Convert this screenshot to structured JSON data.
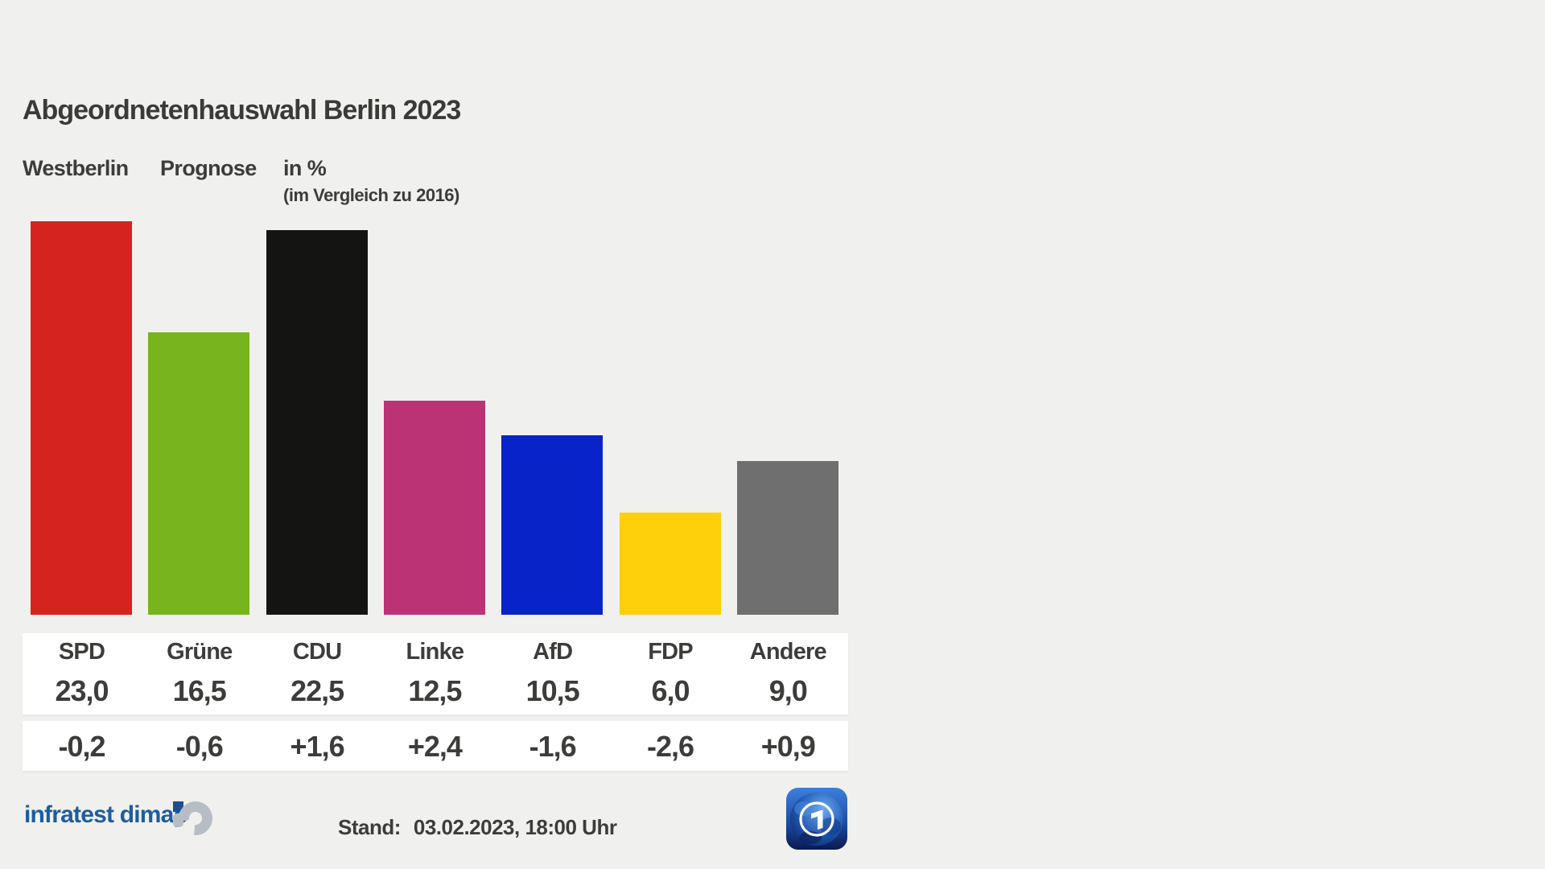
{
  "title": "Abgeordnetenhauswahl Berlin 2023",
  "subtitle": {
    "region": "Westberlin",
    "type": "Prognose",
    "unit": "in %",
    "comparison": "(im Vergleich zu 2016)"
  },
  "chart_data": {
    "type": "bar",
    "title": "Abgeordnetenhauswahl Berlin 2023",
    "subtitle": "Westberlin Prognose in % (im Vergleich zu 2016)",
    "categories": [
      "SPD",
      "Grüne",
      "CDU",
      "Linke",
      "AfD",
      "FDP",
      "Andere"
    ],
    "values": [
      23.0,
      16.5,
      22.5,
      12.5,
      10.5,
      6.0,
      9.0
    ],
    "value_labels": [
      "23,0",
      "16,5",
      "22,5",
      "12,5",
      "10,5",
      "6,0",
      "9,0"
    ],
    "changes": [
      "-0,2",
      "-0,6",
      "+1,6",
      "+2,4",
      "-1,6",
      "-2,6",
      "+0,9"
    ],
    "bar_colors": [
      "#d5231f",
      "#78b41d",
      "#141413",
      "#bb3375",
      "#0823c8",
      "#fdd00b",
      "#706f6f"
    ],
    "xlabel": "",
    "ylabel": "in %",
    "ylim": [
      0,
      25
    ],
    "grid": false,
    "legend": "none"
  },
  "footer": {
    "source_label": "infratest dimap",
    "stand_label": "Stand:",
    "stand_value": "03.02.2023, 18:00 Uhr"
  },
  "colors": {
    "background": "#f0f0ee",
    "text": "#3c3c3a",
    "panel": "#ffffff",
    "brand_blue": "#1e5c9e",
    "brand_gray": "#b7bdc4",
    "brand_square_blue": "#1d4e8f"
  }
}
